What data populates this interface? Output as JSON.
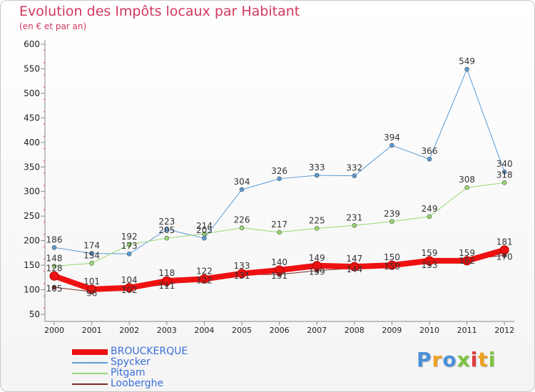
{
  "chart_data": {
    "type": "line",
    "title": "Evolution des Impôts locaux par Habitant",
    "subtitle": "(en € et par an)",
    "x": [
      "2000",
      "2001",
      "2002",
      "2003",
      "2004",
      "2005",
      "2006",
      "2007",
      "2008",
      "2009",
      "2010",
      "2011",
      "2012"
    ],
    "ylim": [
      50,
      600
    ],
    "yticks": [
      50,
      100,
      150,
      200,
      250,
      300,
      350,
      400,
      450,
      500,
      550,
      600
    ],
    "grid": false,
    "legend_position": "bottom-left",
    "series": [
      {
        "name": "BROUCKERQUE",
        "color": "#ee1111",
        "width": 8,
        "values": [
          128,
          101,
          104,
          118,
          122,
          133,
          140,
          149,
          147,
          150,
          159,
          159,
          181
        ],
        "labels": [
          "128",
          "101",
          "104",
          "118",
          "122",
          "133",
          "140",
          "149",
          "147",
          "150",
          "159",
          "159",
          "181"
        ]
      },
      {
        "name": "Spycker",
        "color": "#5b9bd5",
        "width": 1,
        "values": [
          186,
          174,
          173,
          223,
          205,
          304,
          326,
          333,
          332,
          394,
          366,
          549,
          340
        ],
        "labels": [
          "186",
          "174",
          "173",
          "223",
          "205",
          "304",
          "326",
          "333",
          "332",
          "394",
          "366",
          "549",
          "340"
        ]
      },
      {
        "name": "Pitgam",
        "color": "#96d86f",
        "width": 1,
        "values": [
          148,
          154,
          192,
          205,
          214,
          226,
          217,
          225,
          231,
          239,
          249,
          308,
          318
        ],
        "labels": [
          "148",
          "154",
          "192",
          "205",
          "214",
          "226",
          "217",
          "225",
          "231",
          "239",
          "249",
          "308",
          "318"
        ]
      },
      {
        "name": "Looberghe",
        "color": "#7b2a2a",
        "width": 1,
        "values": [
          105,
          96,
          102,
          111,
          122,
          131,
          131,
          139,
          144,
          150,
          153,
          162,
          170
        ],
        "labels": [
          "105",
          "96",
          "102",
          "111",
          "122",
          "131",
          "131",
          "139",
          "144",
          "150",
          "153",
          "162",
          "170"
        ]
      }
    ]
  },
  "logo": {
    "letters": [
      "P",
      "r",
      "o",
      "x",
      "i",
      "t",
      "i"
    ],
    "colors": [
      "#4a90d9",
      "#f0a020",
      "#4a90d9",
      "#7dc43f",
      "#e23a3a",
      "#f0a020",
      "#7dc43f"
    ]
  }
}
